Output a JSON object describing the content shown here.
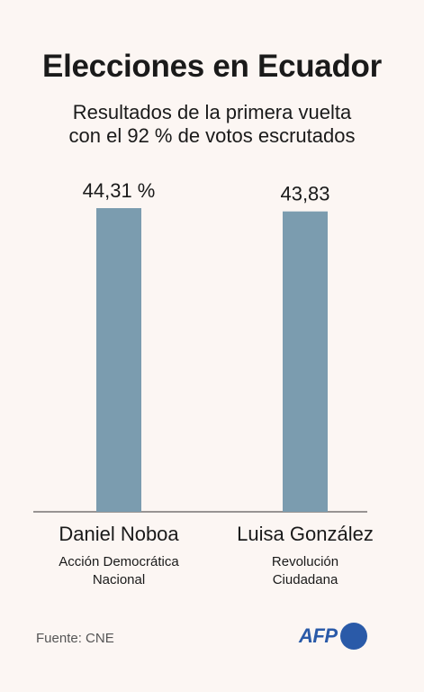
{
  "title": "Elecciones en Ecuador",
  "subtitle_lines": [
    "Resultados de la primera vuelta",
    "con el 92 % de votos escrutados"
  ],
  "source": "Fuente: CNE",
  "logo_text": "AFP",
  "colors": {
    "bar": "#7b9caf",
    "background": "#fcf6f3",
    "axis": "#333333",
    "logo": "#2a5aa8"
  },
  "chart_data": {
    "type": "bar",
    "categories": [
      "Daniel Noboa",
      "Luisa González"
    ],
    "parties": [
      [
        "Acción Democrática",
        "Nacional"
      ],
      [
        "Revolución",
        "Ciudadana"
      ]
    ],
    "values": [
      44.31,
      43.83
    ],
    "value_labels": [
      "44,31 %",
      "43,83"
    ],
    "ylim": [
      0,
      44.31
    ],
    "grid": false
  }
}
